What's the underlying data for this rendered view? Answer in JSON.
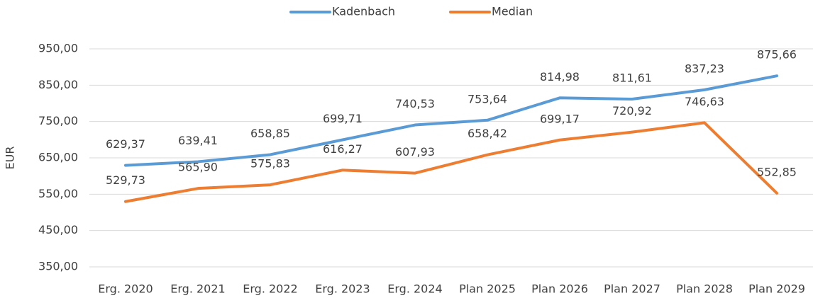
{
  "chart_data": {
    "type": "line",
    "categories": [
      "Erg. 2020",
      "Erg. 2021",
      "Erg. 2022",
      "Erg. 2023",
      "Erg. 2024",
      "Plan 2025",
      "Plan 2026",
      "Plan 2027",
      "Plan 2028",
      "Plan 2029"
    ],
    "y_label": "EUR",
    "series": [
      {
        "name": "Kadenbach",
        "color": "#5b9bd5",
        "values": [
          629.37,
          639.41,
          658.85,
          699.71,
          740.53,
          753.64,
          814.98,
          811.61,
          837.23,
          875.66
        ],
        "value_labels": [
          "629,37",
          "639,41",
          "658,85",
          "699,71",
          "740,53",
          "753,64",
          "814,98",
          "811,61",
          "837,23",
          "875,66"
        ]
      },
      {
        "name": "Median",
        "color": "#ed7d31",
        "values": [
          529.73,
          565.9,
          575.83,
          616.27,
          607.93,
          658.42,
          699.17,
          720.92,
          746.63,
          552.85
        ],
        "value_labels": [
          "529,73",
          "565,90",
          "575,83",
          "616,27",
          "607,93",
          "658,42",
          "699,17",
          "720,92",
          "746,63",
          "552,85"
        ]
      }
    ],
    "ylim": [
      350,
      950
    ],
    "yticks": [
      {
        "value": 350,
        "label": "350,00"
      },
      {
        "value": 450,
        "label": "450,00"
      },
      {
        "value": 550,
        "label": "550,00"
      },
      {
        "value": 650,
        "label": "650,00"
      },
      {
        "value": 750,
        "label": "750,00"
      },
      {
        "value": 850,
        "label": "850,00"
      },
      {
        "value": 950,
        "label": "950,00"
      }
    ],
    "grid": true,
    "legend": "top"
  }
}
